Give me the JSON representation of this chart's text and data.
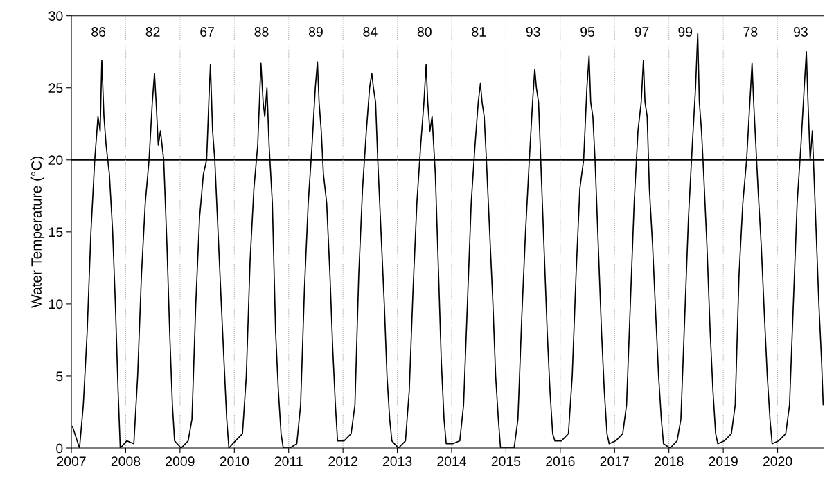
{
  "chart_data": {
    "type": "line",
    "ylabel": "Water Temperature (°C)",
    "x": [
      2007.02,
      2007.15,
      2007.22,
      2007.29,
      2007.36,
      2007.43,
      2007.49,
      2007.53,
      2007.56,
      2007.6,
      2007.64,
      2007.7,
      2007.76,
      2007.81,
      2007.86,
      2007.9,
      2008.02,
      2008.15,
      2008.22,
      2008.29,
      2008.36,
      2008.43,
      2008.49,
      2008.53,
      2008.56,
      2008.6,
      2008.64,
      2008.7,
      2008.76,
      2008.81,
      2008.86,
      2008.9,
      2009.02,
      2009.15,
      2009.22,
      2009.29,
      2009.36,
      2009.43,
      2009.49,
      2009.53,
      2009.56,
      2009.6,
      2009.64,
      2009.7,
      2009.76,
      2009.81,
      2009.86,
      2009.9,
      2010.02,
      2010.15,
      2010.22,
      2010.29,
      2010.36,
      2010.43,
      2010.49,
      2010.53,
      2010.56,
      2010.6,
      2010.64,
      2010.7,
      2010.76,
      2010.81,
      2010.86,
      2010.9,
      2011.02,
      2011.15,
      2011.22,
      2011.29,
      2011.36,
      2011.43,
      2011.49,
      2011.53,
      2011.56,
      2011.6,
      2011.64,
      2011.7,
      2011.76,
      2011.81,
      2011.86,
      2011.9,
      2012.02,
      2012.15,
      2012.22,
      2012.29,
      2012.36,
      2012.43,
      2012.49,
      2012.53,
      2012.56,
      2012.6,
      2012.64,
      2012.7,
      2012.76,
      2012.81,
      2012.86,
      2012.9,
      2013.02,
      2013.15,
      2013.22,
      2013.29,
      2013.36,
      2013.43,
      2013.49,
      2013.53,
      2013.56,
      2013.6,
      2013.64,
      2013.7,
      2013.76,
      2013.81,
      2013.86,
      2013.9,
      2014.02,
      2014.15,
      2014.22,
      2014.29,
      2014.36,
      2014.43,
      2014.49,
      2014.53,
      2014.56,
      2014.6,
      2014.64,
      2014.7,
      2014.76,
      2014.81,
      2014.86,
      2014.9,
      2015.02,
      2015.15,
      2015.22,
      2015.29,
      2015.36,
      2015.43,
      2015.49,
      2015.53,
      2015.56,
      2015.6,
      2015.64,
      2015.7,
      2015.76,
      2015.81,
      2015.86,
      2015.9,
      2016.02,
      2016.15,
      2016.22,
      2016.29,
      2016.36,
      2016.43,
      2016.49,
      2016.53,
      2016.56,
      2016.6,
      2016.64,
      2016.7,
      2016.76,
      2016.81,
      2016.86,
      2016.9,
      2017.02,
      2017.15,
      2017.22,
      2017.29,
      2017.36,
      2017.43,
      2017.49,
      2017.53,
      2017.56,
      2017.6,
      2017.64,
      2017.7,
      2017.76,
      2017.81,
      2017.86,
      2017.9,
      2018.02,
      2018.15,
      2018.22,
      2018.29,
      2018.36,
      2018.43,
      2018.49,
      2018.53,
      2018.56,
      2018.6,
      2018.64,
      2018.7,
      2018.76,
      2018.81,
      2018.86,
      2018.9,
      2019.02,
      2019.15,
      2019.22,
      2019.29,
      2019.36,
      2019.43,
      2019.49,
      2019.53,
      2019.56,
      2019.6,
      2019.64,
      2019.7,
      2019.76,
      2019.81,
      2019.86,
      2019.9,
      2020.02,
      2020.15,
      2020.22,
      2020.29,
      2020.36,
      2020.43,
      2020.49,
      2020.53,
      2020.56,
      2020.6,
      2020.64,
      2020.7,
      2020.76,
      2020.81,
      2020.84
    ],
    "series": [
      {
        "color": "#000000",
        "values": [
          1.5,
          0,
          3,
          8,
          15,
          20,
          23,
          22,
          26.9,
          23,
          21,
          19,
          15,
          10,
          4,
          0,
          0.5,
          0.3,
          5,
          12,
          17,
          20,
          24,
          26,
          24,
          21,
          22,
          20,
          14,
          8,
          3,
          0.5,
          0,
          0.5,
          2,
          10,
          16,
          19,
          20,
          24,
          26.6,
          22,
          20,
          15,
          10,
          6,
          2,
          0,
          0.5,
          1,
          5,
          13,
          18,
          21,
          26.7,
          24,
          23,
          25,
          21,
          17,
          8,
          4,
          1,
          0,
          0,
          0.3,
          3,
          11,
          17,
          21,
          25,
          26.8,
          24,
          22,
          19,
          17,
          12,
          7,
          3,
          0.5,
          0.5,
          1,
          3,
          12,
          18,
          22,
          25,
          26,
          25,
          24,
          20,
          15,
          10,
          5,
          2,
          0.5,
          0,
          0.5,
          4,
          11,
          17,
          21,
          24,
          26.6,
          24,
          22,
          23,
          19,
          12,
          6,
          2,
          0.3,
          0.3,
          0.5,
          3,
          10,
          17,
          21,
          24,
          25.3,
          24,
          23,
          20,
          15,
          10,
          5,
          2,
          0,
          0,
          0,
          2,
          9,
          15,
          20,
          24,
          26.3,
          25,
          24,
          20,
          14,
          8,
          4,
          1,
          0.5,
          0.5,
          1,
          5,
          12,
          18,
          20,
          25,
          27.2,
          24,
          23,
          20,
          14,
          8,
          4,
          1,
          0.3,
          0.5,
          1,
          3,
          10,
          17,
          22,
          24,
          26.9,
          24,
          23,
          18,
          14,
          9,
          5,
          2,
          0.3,
          0,
          0.5,
          2,
          9,
          16,
          21,
          25,
          28.8,
          24,
          22,
          19,
          14,
          8,
          4,
          1,
          0.3,
          0.5,
          1,
          3,
          12,
          17,
          20,
          24,
          26.7,
          24,
          21,
          18,
          14,
          9,
          5,
          2,
          0.3,
          0.5,
          1,
          3,
          10,
          17,
          21,
          25,
          27.5,
          24,
          20,
          22,
          16,
          10,
          6,
          3
        ]
      }
    ],
    "xlim": [
      2007,
      2020.85
    ],
    "xticks": [
      2007,
      2008,
      2009,
      2010,
      2011,
      2012,
      2013,
      2014,
      2015,
      2016,
      2017,
      2018,
      2019,
      2020
    ],
    "ylim": [
      0,
      30
    ],
    "yticks": [
      0,
      5,
      10,
      15,
      20,
      25,
      30
    ],
    "grid": false,
    "marker": "none",
    "line_style": "solid",
    "ref_lines": [
      {
        "axis": "y",
        "value": 20,
        "color": "#000000",
        "line_style": "solid"
      },
      {
        "axis": "x",
        "value": 2008,
        "color": "#b0b0b0",
        "line_style": "dotted"
      },
      {
        "axis": "x",
        "value": 2009,
        "color": "#b0b0b0",
        "line_style": "dotted"
      },
      {
        "axis": "x",
        "value": 2010,
        "color": "#b0b0b0",
        "line_style": "dotted"
      },
      {
        "axis": "x",
        "value": 2011,
        "color": "#b0b0b0",
        "line_style": "dotted"
      },
      {
        "axis": "x",
        "value": 2012,
        "color": "#b0b0b0",
        "line_style": "dotted"
      },
      {
        "axis": "x",
        "value": 2013,
        "color": "#b0b0b0",
        "line_style": "dotted"
      },
      {
        "axis": "x",
        "value": 2014,
        "color": "#b0b0b0",
        "line_style": "dotted"
      },
      {
        "axis": "x",
        "value": 2015,
        "color": "#b0b0b0",
        "line_style": "dotted"
      },
      {
        "axis": "x",
        "value": 2016,
        "color": "#b0b0b0",
        "line_style": "dotted"
      },
      {
        "axis": "x",
        "value": 2017,
        "color": "#b0b0b0",
        "line_style": "dotted"
      },
      {
        "axis": "x",
        "value": 2018,
        "color": "#b0b0b0",
        "line_style": "dotted"
      },
      {
        "axis": "x",
        "value": 2019,
        "color": "#b0b0b0",
        "line_style": "dotted"
      },
      {
        "axis": "x",
        "value": 2020,
        "color": "#b0b0b0",
        "line_style": "dotted"
      }
    ],
    "annotations": [
      "86",
      "82",
      "67",
      "88",
      "89",
      "84",
      "80",
      "81",
      "93",
      "95",
      "97",
      "99",
      "78",
      "93"
    ]
  }
}
